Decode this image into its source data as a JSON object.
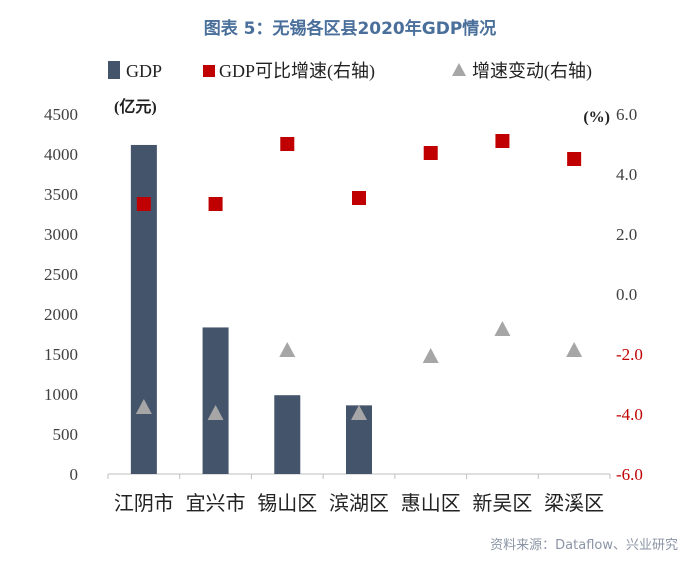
{
  "chart_data": {
    "type": "bar+scatter",
    "title": "图表 5：无锡各区县2020年GDP情况",
    "categories": [
      "江阴市",
      "宜兴市",
      "锡山区",
      "滨湖区",
      "惠山区",
      "新吴区",
      "梁溪区"
    ],
    "series": [
      {
        "name": "GDP",
        "kind": "bar",
        "axis": "left",
        "values": [
          4113,
          1832,
          985,
          858,
          null,
          null,
          null
        ]
      },
      {
        "name": "GDP可比增速(右轴)",
        "kind": "scatter",
        "marker": "square",
        "axis": "right",
        "values": [
          3.0,
          3.0,
          5.0,
          3.2,
          4.7,
          5.1,
          4.5
        ]
      },
      {
        "name": "增速变动(右轴)",
        "kind": "scatter",
        "marker": "triangle",
        "axis": "right",
        "values": [
          -3.8,
          -4.0,
          -1.9,
          -4.0,
          -2.1,
          -1.2,
          -1.9
        ]
      }
    ],
    "left_axis": {
      "unit_label": "(亿元)",
      "min": 0,
      "max": 4500,
      "ticks": [
        "0",
        "500",
        "1000",
        "1500",
        "2000",
        "2500",
        "3000",
        "3500",
        "4000",
        "4500"
      ]
    },
    "right_axis": {
      "unit_label": "(%)",
      "min": -6,
      "max": 6,
      "ticks": [
        "-6.0",
        "-4.0",
        "-2.0",
        "0.0",
        "2.0",
        "4.0",
        "6.0"
      ]
    },
    "legend_position": "top"
  },
  "source": "资料来源：Dataflow、兴业研究",
  "colors": {
    "bar": "#44546a",
    "square": "#c00000",
    "triangle": "#a6a6a6",
    "title": "#4a6f9a",
    "axis_text": "#404040",
    "negative_tick": "#c00000"
  }
}
